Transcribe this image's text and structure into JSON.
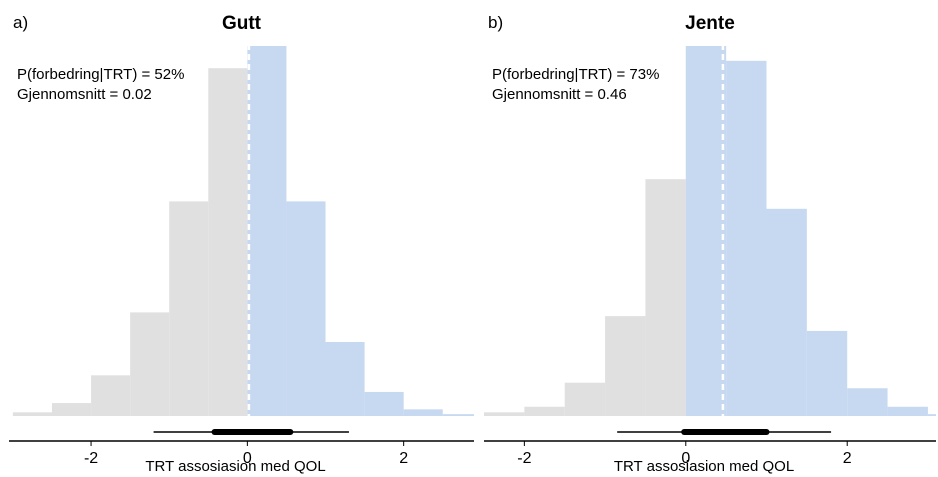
{
  "chart_data": [
    {
      "type": "histogram",
      "panel_label": "a)",
      "title": "Gutt",
      "xlabel": "TRT assosiasion med QOL",
      "xlim": [
        -3.05,
        2.9
      ],
      "x_ticks": [
        -2,
        0,
        2
      ],
      "x_tick_labels": [
        "-2",
        "0",
        "2"
      ],
      "bins": [
        {
          "x0": -3.0,
          "x1": -2.5,
          "density": 0.01
        },
        {
          "x0": -2.5,
          "x1": -2.0,
          "density": 0.035
        },
        {
          "x0": -2.0,
          "x1": -1.5,
          "density": 0.11
        },
        {
          "x0": -1.5,
          "x1": -1.0,
          "density": 0.28
        },
        {
          "x0": -1.0,
          "x1": -0.5,
          "density": 0.58
        },
        {
          "x0": -0.5,
          "x1": 0.0,
          "density": 0.94
        },
        {
          "x0": 0.0,
          "x1": 0.5,
          "density": 1.0
        },
        {
          "x0": 0.5,
          "x1": 1.0,
          "density": 0.58
        },
        {
          "x0": 1.0,
          "x1": 1.5,
          "density": 0.2
        },
        {
          "x0": 1.5,
          "x1": 2.0,
          "density": 0.065
        },
        {
          "x0": 2.0,
          "x1": 2.5,
          "density": 0.018
        },
        {
          "x0": 2.5,
          "x1": 3.0,
          "density": 0.005
        }
      ],
      "mean": 0.02,
      "interval_50": [
        -0.42,
        0.55
      ],
      "interval_95": [
        -1.2,
        1.3
      ],
      "annotations": [
        "P(forbedring|TRT) = 52%",
        "Gjennomsnitt = 0.02"
      ],
      "colors": {
        "negative": "#e0e0e0",
        "positive": "#c6d9f1",
        "mean_line": "#ffffff",
        "interval": "#000000"
      }
    },
    {
      "type": "histogram",
      "panel_label": "b)",
      "title": "Jente",
      "xlabel": "TRT assosiasion med QOL",
      "xlim": [
        -2.5,
        3.1
      ],
      "x_ticks": [
        -2,
        0,
        2
      ],
      "x_tick_labels": [
        "-2",
        "0",
        "2"
      ],
      "bins": [
        {
          "x0": -2.5,
          "x1": -2.0,
          "density": 0.01
        },
        {
          "x0": -2.0,
          "x1": -1.5,
          "density": 0.025
        },
        {
          "x0": -1.5,
          "x1": -1.0,
          "density": 0.09
        },
        {
          "x0": -1.0,
          "x1": -0.5,
          "density": 0.27
        },
        {
          "x0": -0.5,
          "x1": 0.0,
          "density": 0.64
        },
        {
          "x0": 0.0,
          "x1": 0.5,
          "density": 1.0
        },
        {
          "x0": 0.5,
          "x1": 1.0,
          "density": 0.96
        },
        {
          "x0": 1.0,
          "x1": 1.5,
          "density": 0.56
        },
        {
          "x0": 1.5,
          "x1": 2.0,
          "density": 0.23
        },
        {
          "x0": 2.0,
          "x1": 2.5,
          "density": 0.075
        },
        {
          "x0": 2.5,
          "x1": 3.0,
          "density": 0.025
        },
        {
          "x0": 3.0,
          "x1": 3.5,
          "density": 0.005
        }
      ],
      "mean": 0.46,
      "interval_50": [
        -0.02,
        1.0
      ],
      "interval_95": [
        -0.85,
        1.8
      ],
      "annotations": [
        "P(forbedring|TRT) = 73%",
        "Gjennomsnitt = 0.46"
      ],
      "colors": {
        "negative": "#e0e0e0",
        "positive": "#c6d9f1",
        "mean_line": "#ffffff",
        "interval": "#000000"
      }
    }
  ]
}
